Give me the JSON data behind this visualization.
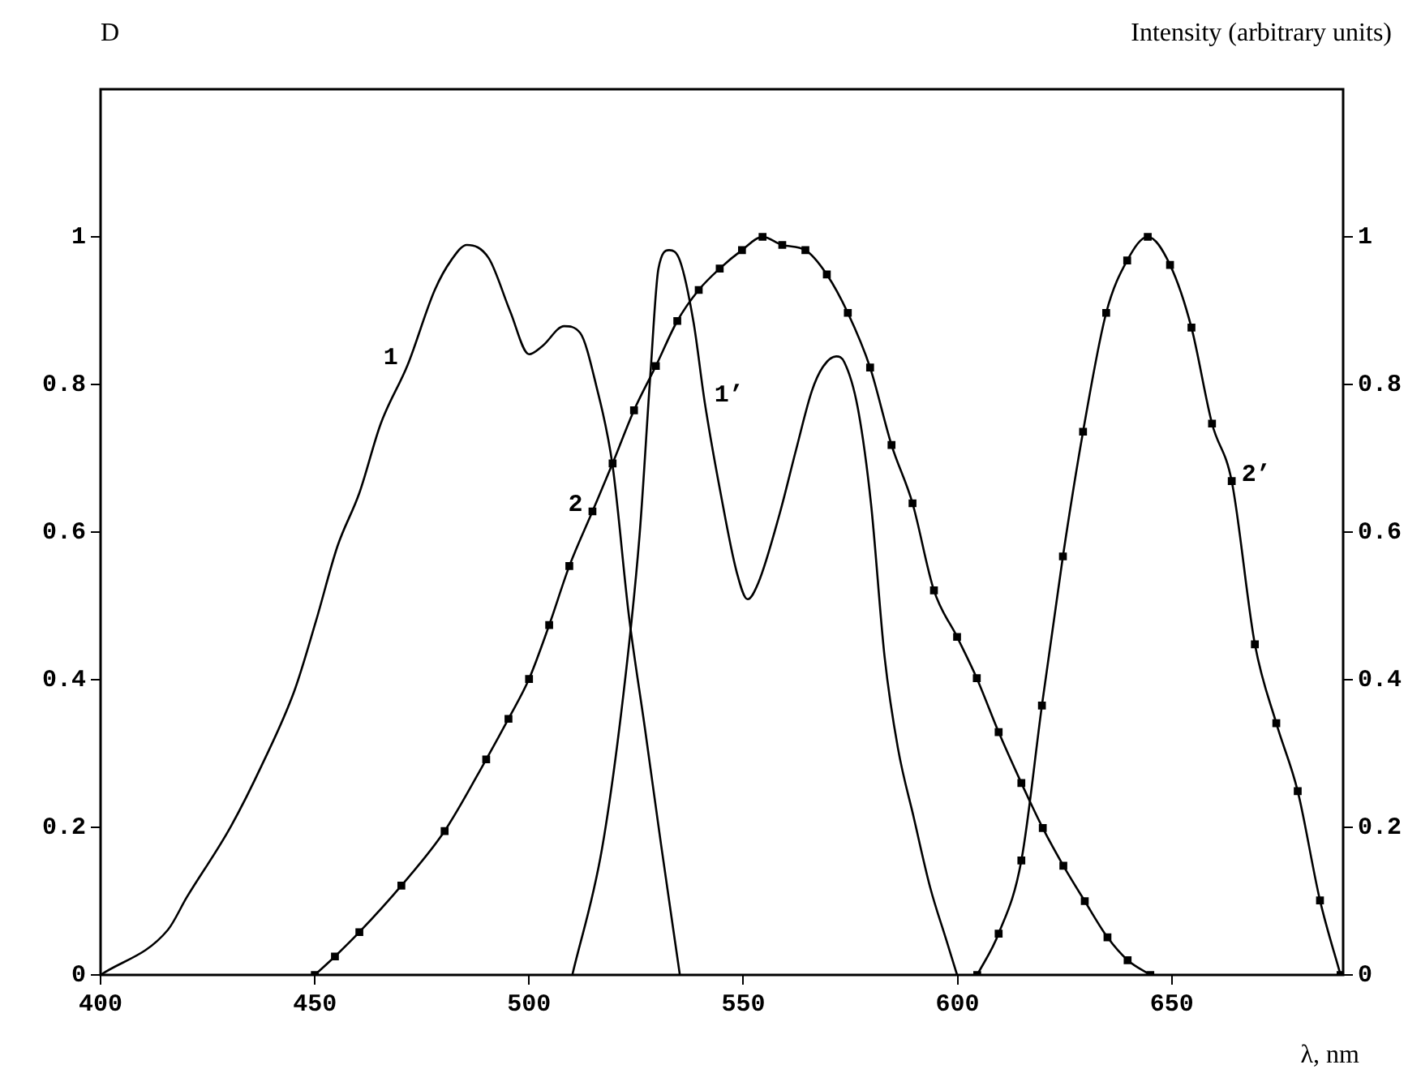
{
  "chart_data": {
    "type": "line",
    "xlabel": "λ, nm",
    "ylabel": "D",
    "y2label": "Intensity (arbitrary units)",
    "xlim": [
      400,
      690
    ],
    "xticks": [
      400,
      450,
      500,
      550,
      600,
      650
    ],
    "ylim": [
      0,
      1.2
    ],
    "yticks": [
      0,
      0.2,
      0.4,
      0.6,
      0.8,
      1
    ],
    "y2lim": [
      0,
      1.2
    ],
    "y2ticks": [
      0,
      0.2,
      0.4,
      0.6,
      0.8,
      1
    ],
    "series": [
      {
        "color": "#000000",
        "marker": "none",
        "x": [
          400,
          415.7,
          420.1,
          430.2,
          437.7,
          445.3,
          450.3,
          455.3,
          460.4,
          465.4,
          471.7,
          478,
          481.8,
          485.5,
          490.6,
          495.6,
          500,
          503.1,
          508.2,
          511.9,
          515.7,
          519.5,
          523.3,
          527,
          530.8,
          535.2
        ],
        "values": [
          0,
          0.061,
          0.105,
          0.199,
          0.285,
          0.386,
          0.48,
          0.581,
          0.653,
          0.747,
          0.827,
          0.928,
          0.968,
          0.989,
          0.971,
          0.899,
          0.841,
          0.852,
          0.879,
          0.87,
          0.798,
          0.69,
          0.487,
          0.336,
          0.177,
          0
        ]
      },
      {
        "color": "#000000",
        "marker": "none",
        "x": [
          510.1,
          517,
          522,
          525.8,
          528.3,
          530.2,
          532.7,
          535.2,
          538.4,
          541,
          544.7,
          548.5,
          551,
          553.5,
          558.5,
          562.3,
          566,
          568.5,
          571.7,
          573.6,
          576.7,
          579.8,
          583,
          586.1,
          589.8,
          593.6,
          597.4,
          599.9
        ],
        "values": [
          0,
          0.17,
          0.379,
          0.596,
          0.812,
          0.957,
          0.982,
          0.968,
          0.884,
          0.776,
          0.653,
          0.545,
          0.509,
          0.531,
          0.625,
          0.711,
          0.791,
          0.823,
          0.838,
          0.83,
          0.769,
          0.639,
          0.43,
          0.307,
          0.213,
          0.119,
          0.047,
          0
        ]
      },
      {
        "color": "#000000",
        "marker": "square",
        "x": [
          450,
          454.7,
          460.4,
          470.2,
          480.3,
          490,
          495.2,
          500,
          504.7,
          509.4,
          514.8,
          519.5,
          524.5,
          529.6,
          534.6,
          539.6,
          544.5,
          549.7,
          554.5,
          559.1,
          564.5,
          569.5,
          574.4,
          579.6,
          584.6,
          589.5,
          594.5,
          599.9,
          604.5,
          609.6,
          614.9,
          619.9,
          624.7,
          629.7,
          635,
          639.7,
          645
        ],
        "values": [
          0,
          0.025,
          0.058,
          0.121,
          0.195,
          0.292,
          0.347,
          0.401,
          0.474,
          0.554,
          0.628,
          0.693,
          0.765,
          0.825,
          0.886,
          0.928,
          0.957,
          0.982,
          1,
          0.989,
          0.982,
          0.949,
          0.897,
          0.823,
          0.718,
          0.639,
          0.521,
          0.458,
          0.402,
          0.329,
          0.26,
          0.199,
          0.148,
          0.1,
          0.051,
          0.02,
          0
        ]
      },
      {
        "color": "#000000",
        "marker": "square",
        "x": [
          604.6,
          609.6,
          614.9,
          619.7,
          624.6,
          629.3,
          634.7,
          639.6,
          644.4,
          649.6,
          654.6,
          659.4,
          664,
          669.4,
          674.4,
          679.4,
          684.6,
          689.4
        ],
        "values": [
          0,
          0.056,
          0.155,
          0.365,
          0.567,
          0.736,
          0.897,
          0.968,
          1,
          0.962,
          0.877,
          0.747,
          0.669,
          0.448,
          0.341,
          0.249,
          0.101,
          0
        ]
      }
    ],
    "annotations": [
      {
        "text": "1",
        "x": 471.7,
        "y": 0.827
      },
      {
        "text": "1’",
        "x": 541,
        "y": 0.776
      },
      {
        "text": "2",
        "x": 514.8,
        "y": 0.628
      },
      {
        "text": "2’",
        "x": 664,
        "y": 0.669
      }
    ]
  }
}
